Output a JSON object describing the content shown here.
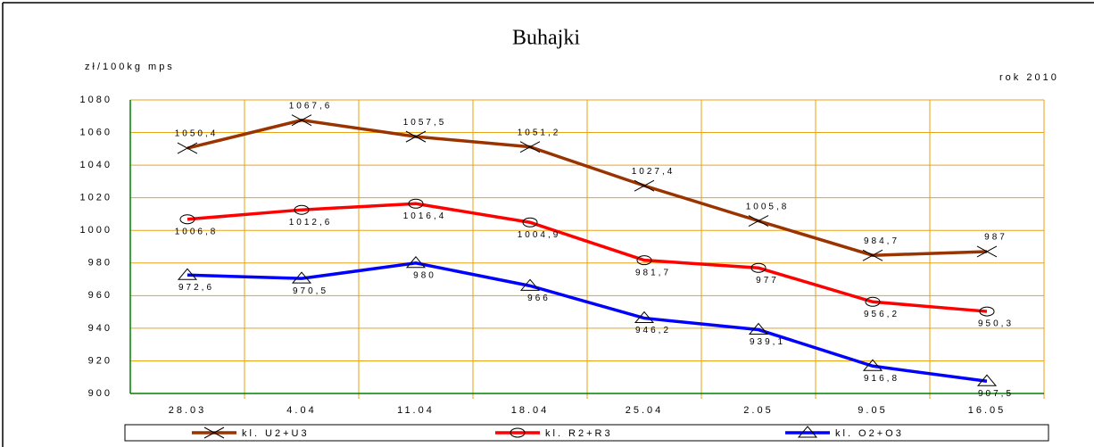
{
  "chart_data": {
    "type": "line",
    "title": "Buhajki",
    "y_label": "zł/100kg mps",
    "annotation": "rok 2010",
    "categories": [
      "28.03",
      "4.04",
      "11.04",
      "18.04",
      "25.04",
      "2.05",
      "9.05",
      "16.05"
    ],
    "series": [
      {
        "name": "kl. U2+U3",
        "color": "#993300",
        "marker": "x",
        "values": [
          1050.4,
          1067.6,
          1057.5,
          1051.2,
          1027.4,
          1005.8,
          984.7,
          987
        ],
        "value_labels": [
          "1050,4",
          "1067,6",
          "1057,5",
          "1051,2",
          "1027,4",
          "1005,8",
          "984,7",
          "987"
        ]
      },
      {
        "name": "kl. R2+R3",
        "color": "#ff0000",
        "marker": "circle",
        "values": [
          1006.8,
          1012.6,
          1016.4,
          1004.9,
          981.7,
          977,
          956.2,
          950.3
        ],
        "value_labels": [
          "1006,8",
          "1012,6",
          "1016,4",
          "1004,9",
          "981,7",
          "977",
          "956,2",
          "950,3"
        ]
      },
      {
        "name": "kl. O2+O3",
        "color": "#0000ff",
        "marker": "triangle",
        "values": [
          972.6,
          970.5,
          980,
          966,
          946.2,
          939.1,
          916.8,
          907.5
        ],
        "value_labels": [
          "972,6",
          "970,5",
          "980",
          "966",
          "946,2",
          "939,1",
          "916,8",
          "907,5"
        ]
      }
    ],
    "ylim": [
      900,
      1080
    ],
    "yticks": [
      900,
      920,
      940,
      960,
      980,
      1000,
      1020,
      1040,
      1060,
      1080
    ],
    "grid": true
  }
}
